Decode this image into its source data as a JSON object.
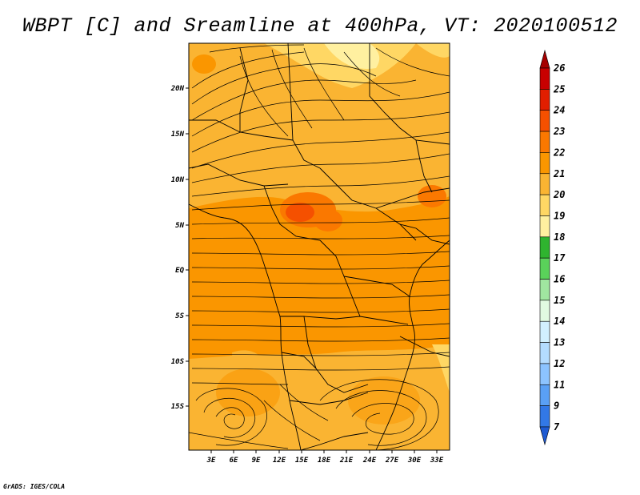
{
  "title": "WBPT [C] and Sreamline at 400hPa, VT: 2020100512",
  "credit": "GrADS: IGES/COLA",
  "map": {
    "lat_labels": [
      "20N",
      "15N",
      "10N",
      "5N",
      "EQ",
      "5S",
      "10S",
      "15S"
    ],
    "lon_labels": [
      "3E",
      "6E",
      "9E",
      "12E",
      "15E",
      "18E",
      "21E",
      "24E",
      "27E",
      "30E",
      "33E"
    ]
  },
  "colorbar": {
    "labels": [
      "26",
      "25",
      "24",
      "23",
      "22",
      "21",
      "20",
      "19",
      "18",
      "17",
      "16",
      "15",
      "14",
      "13",
      "12",
      "11",
      "9",
      "7"
    ],
    "colors": [
      "#a50000",
      "#c80000",
      "#e11e00",
      "#f55000",
      "#fa7800",
      "#fa9600",
      "#fab432",
      "#ffd764",
      "#fff0a0",
      "#2fb42f",
      "#5ad25a",
      "#a0e6a0",
      "#e1fae1",
      "#d2f0ff",
      "#b4dcff",
      "#8cc3ff",
      "#5aa0f5",
      "#3278e6",
      "#1e5ad2"
    ]
  }
}
